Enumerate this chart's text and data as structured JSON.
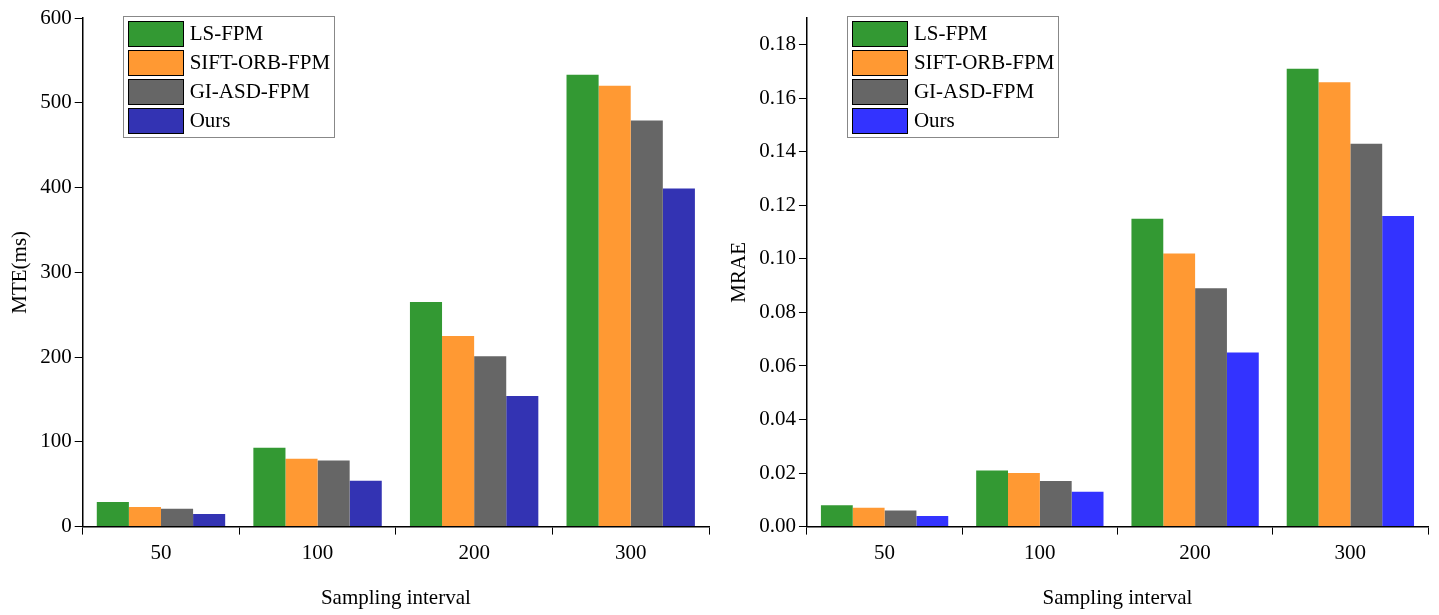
{
  "chart_data": [
    {
      "type": "bar",
      "categories": [
        "50",
        "100",
        "200",
        "300"
      ],
      "xlabel": "Sampling interval",
      "ylabel": "MTE(ms)",
      "ylim": [
        0,
        600
      ],
      "yticks": [
        0,
        100,
        200,
        300,
        400,
        500,
        600
      ],
      "grid": false,
      "legend": "top left",
      "series": [
        {
          "name": "LS-FPM",
          "color": "#339933",
          "values": [
            29,
            93,
            265,
            533
          ]
        },
        {
          "name": "SIFT-ORB-FPM",
          "color": "#ff9933",
          "values": [
            23,
            80,
            225,
            520
          ]
        },
        {
          "name": "GI-ASD-FPM",
          "color": "#666666",
          "values": [
            21,
            78,
            201,
            479
          ]
        },
        {
          "name": "Ours",
          "color": "#3333b3",
          "values": [
            15,
            54,
            154,
            399
          ]
        }
      ]
    },
    {
      "type": "bar",
      "categories": [
        "50",
        "100",
        "200",
        "300"
      ],
      "xlabel": "Sampling interval",
      "ylabel": "MRAE",
      "ylim": [
        0,
        0.19
      ],
      "yticks": [
        {
          "value": 0,
          "label": "0.00"
        },
        {
          "value": 0.02,
          "label": "0.02"
        },
        {
          "value": 0.04,
          "label": "0.04"
        },
        {
          "value": 0.06,
          "label": "0.06"
        },
        {
          "value": 0.08,
          "label": "0.08"
        },
        {
          "value": 0.1,
          "label": "0.10"
        },
        {
          "value": 0.12,
          "label": "0.12"
        },
        {
          "value": 0.14,
          "label": "0.14"
        },
        {
          "value": 0.16,
          "label": "0.16"
        },
        {
          "value": 0.18,
          "label": "0.18"
        }
      ],
      "grid": false,
      "legend": "top left",
      "series": [
        {
          "name": "LS-FPM",
          "color": "#339933",
          "values": [
            0.008,
            0.021,
            0.115,
            0.171
          ]
        },
        {
          "name": "SIFT-ORB-FPM",
          "color": "#ff9933",
          "values": [
            0.007,
            0.02,
            0.102,
            0.166
          ]
        },
        {
          "name": "GI-ASD-FPM",
          "color": "#666666",
          "values": [
            0.006,
            0.017,
            0.089,
            0.143
          ]
        },
        {
          "name": "Ours",
          "color": "#3333ff",
          "values": [
            0.004,
            0.013,
            0.065,
            0.116
          ]
        }
      ]
    }
  ]
}
